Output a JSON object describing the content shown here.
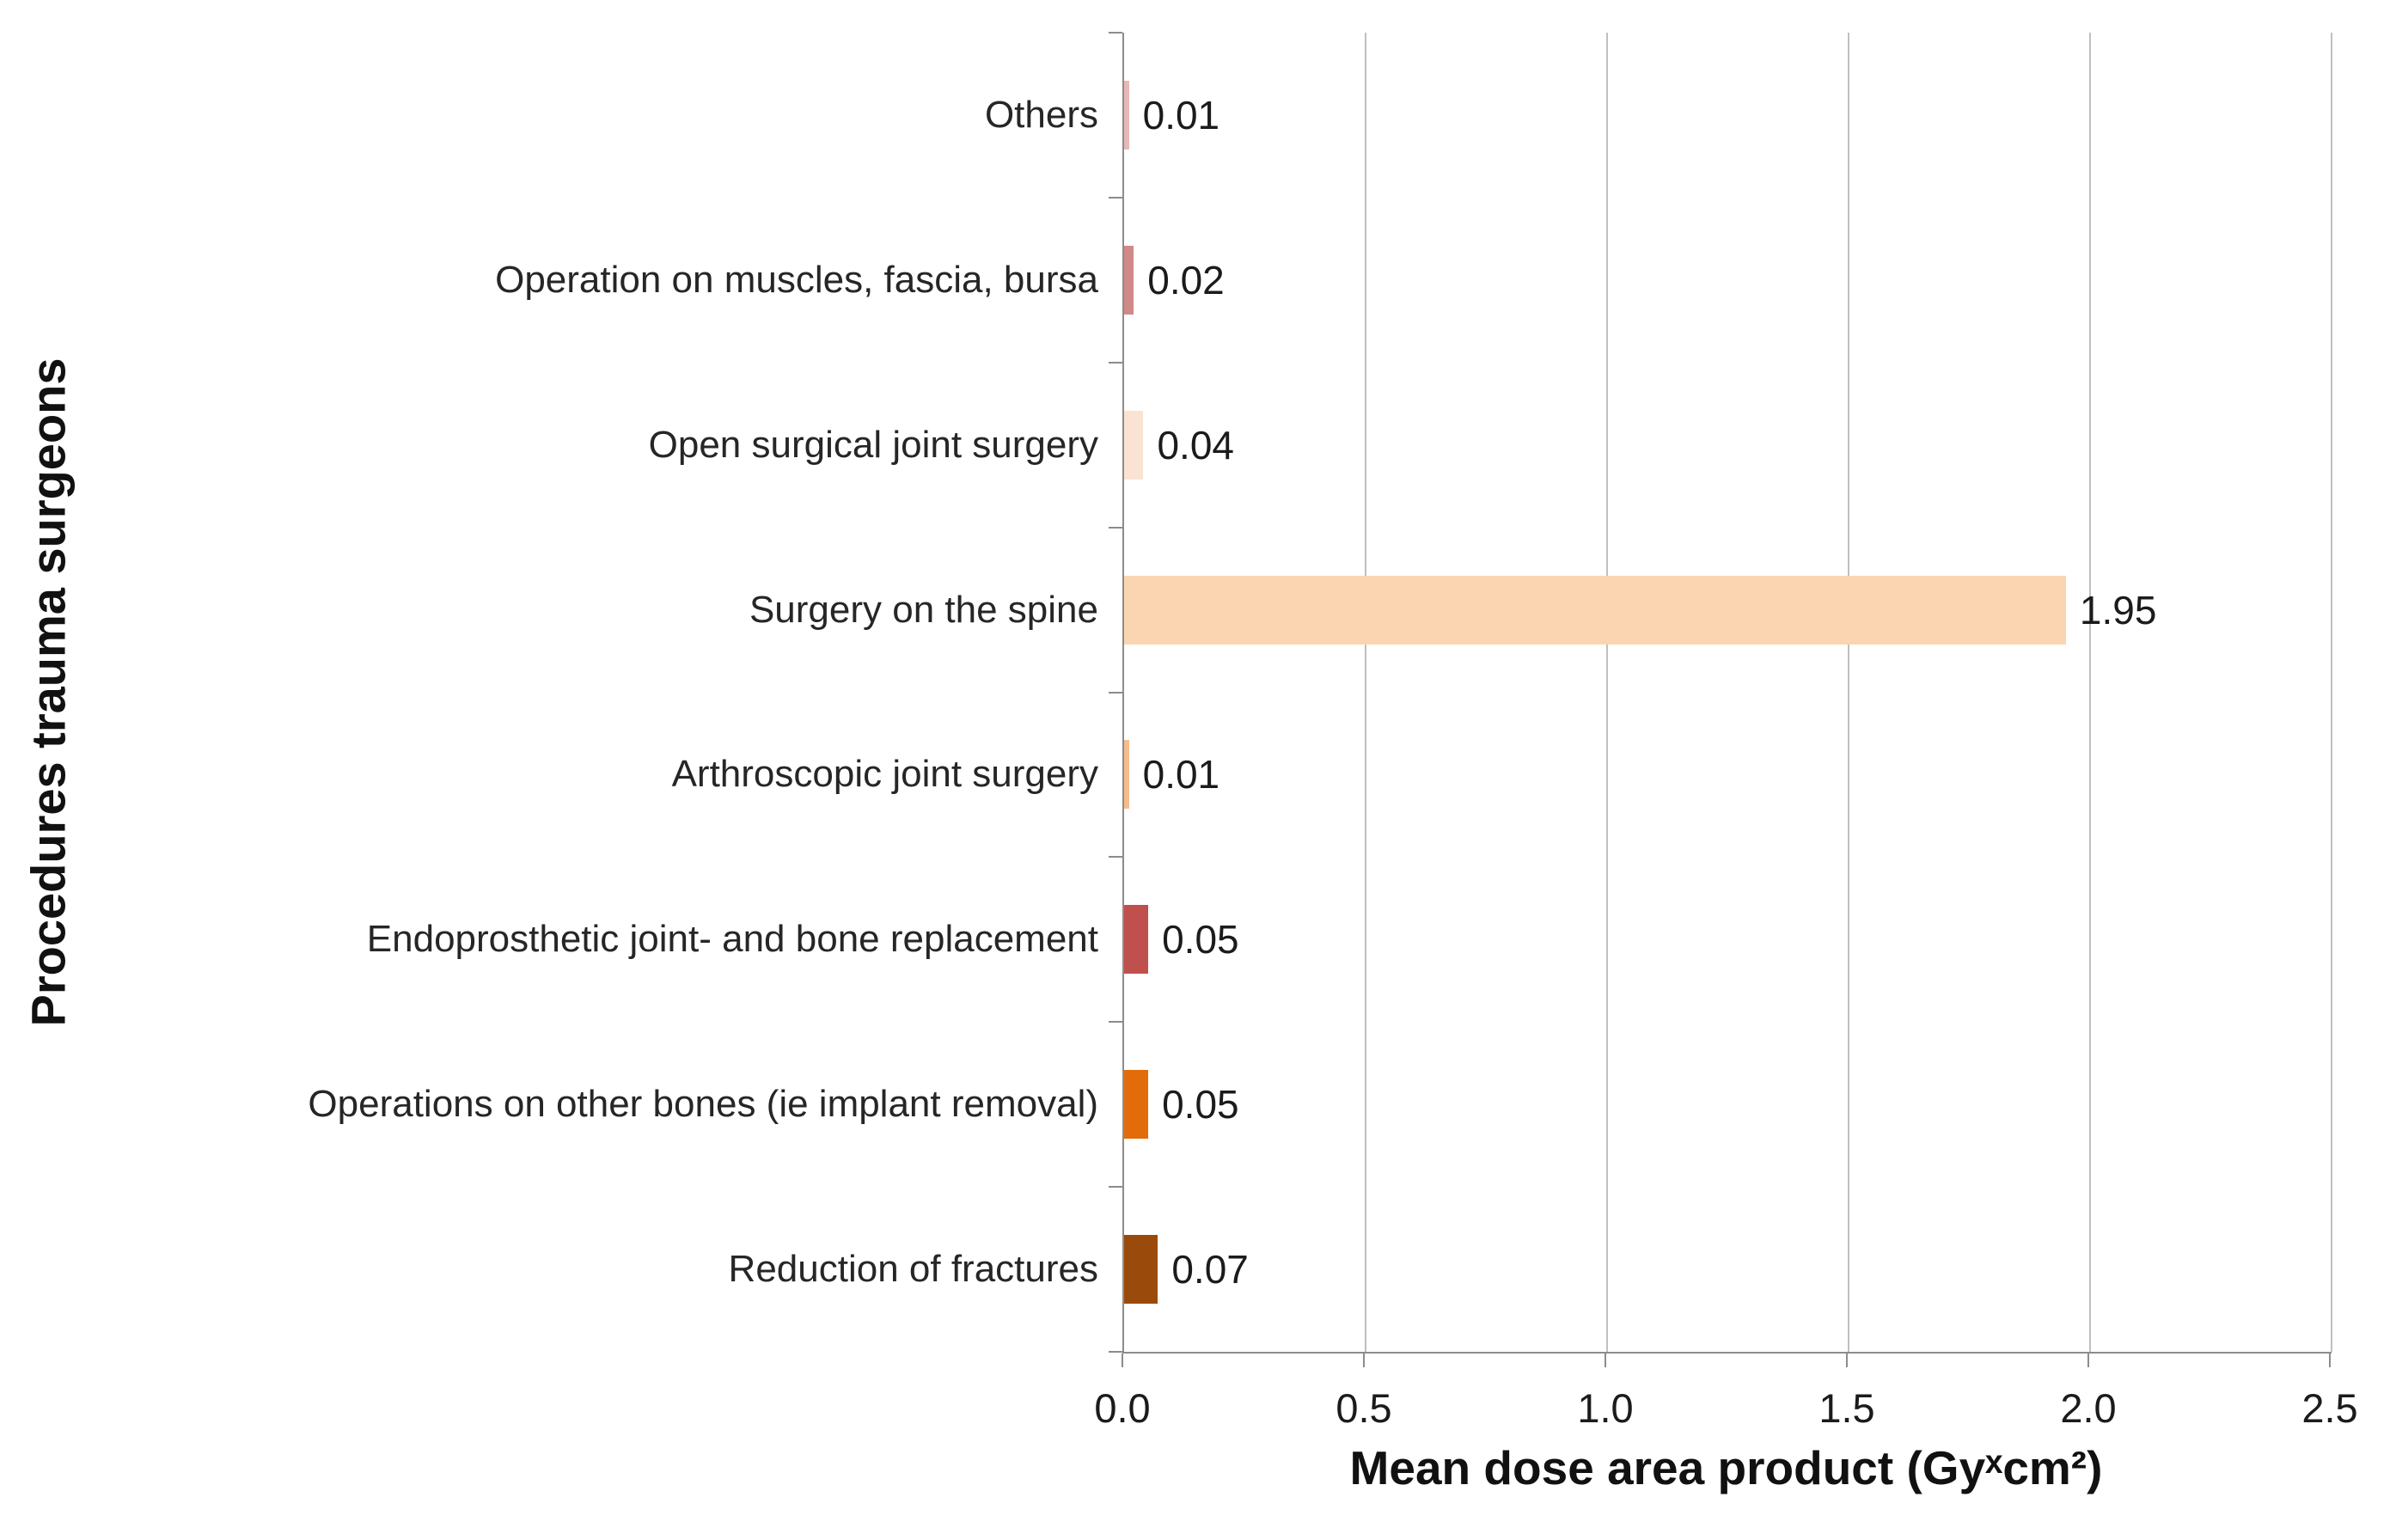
{
  "chart_data": {
    "type": "bar",
    "orientation": "horizontal",
    "title": "",
    "xlabel": "Mean dose area product (Gyˣcm²)",
    "ylabel": "Procedures  trauma surgeons",
    "xlim": [
      0,
      2.5
    ],
    "xtick_labels": [
      "0.0",
      "0.5",
      "1.0",
      "1.5",
      "2.0",
      "2.5"
    ],
    "xtick_values": [
      0,
      0.5,
      1.0,
      1.5,
      2.0,
      2.5
    ],
    "grid": true,
    "legend": "none",
    "categories": [
      "Others",
      "Operation on muscles, fascia, bursa",
      "Open surgical joint surgery",
      "Surgery on the spine",
      "Arthroscopic joint surgery",
      "Endoprosthetic joint- and bone replacement",
      "Operations on other bones (ie implant removal)",
      "Reduction of fractures"
    ],
    "values": [
      0.01,
      0.02,
      0.04,
      1.95,
      0.01,
      0.05,
      0.05,
      0.07
    ],
    "value_labels": [
      "0.01",
      "0.02",
      "0.04",
      "1.95",
      "0.01",
      "0.05",
      "0.05",
      "0.07"
    ],
    "bar_colors": [
      "#E6B8B7",
      "#D08987",
      "#FAE3D2",
      "#FBD4B2",
      "#F4BD8D",
      "#C0504D",
      "#E36C0A",
      "#9A4A0B"
    ]
  },
  "colors": {
    "gridline": "#bfbfbf",
    "axis": "#8c8c8c",
    "text": "#1b1b1b",
    "background": "#ffffff"
  }
}
